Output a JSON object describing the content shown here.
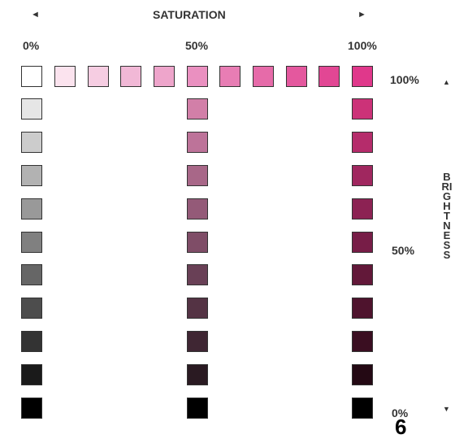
{
  "header": {
    "title": "SATURATION",
    "left_arrow": "◄",
    "right_arrow": "►",
    "sat_0": "0%",
    "sat_50": "50%",
    "sat_100": "100%"
  },
  "side": {
    "b_100": "100%",
    "b_50": "50%",
    "b_0": "0%",
    "up_arrow": "▲",
    "down_arrow": "▼",
    "label": "BRIGHTNESS"
  },
  "page_number": "6",
  "swatches": {
    "top_row": [
      "#ffffff",
      "#fbe3ee",
      "#f6cde2",
      "#f1b8d6",
      "#eea5cb",
      "#ea90c0",
      "#e87db4",
      "#e66ba9",
      "#e4589e",
      "#e24794",
      "#e0388b"
    ],
    "col_0": [
      "#e6e6e6",
      "#cccccc",
      "#b2b2b2",
      "#999999",
      "#808080",
      "#666666",
      "#4d4d4d",
      "#333333",
      "#1a1a1a",
      "#000000"
    ],
    "col_50": [
      "#d27fa8",
      "#bd7399",
      "#a86788",
      "#945a78",
      "#7f4d67",
      "#694056",
      "#543344",
      "#3f2633",
      "#2a1a22",
      "#000000"
    ],
    "col_100": [
      "#cc3278",
      "#b52c6b",
      "#a0275f",
      "#8c2253",
      "#771d47",
      "#621839",
      "#4e132d",
      "#3a0e21",
      "#240914",
      "#000000"
    ]
  }
}
